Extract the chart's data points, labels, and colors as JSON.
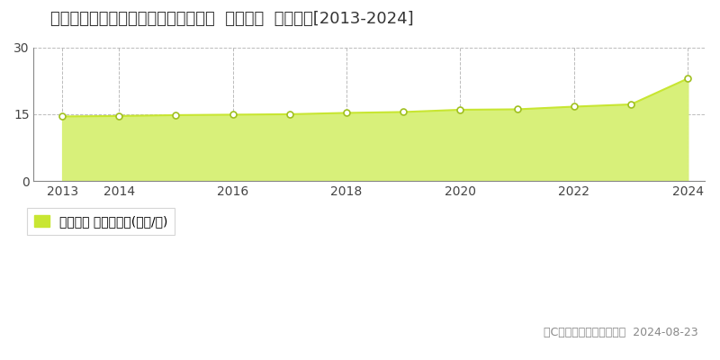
{
  "title": "宮城県名取市飯野坂６丁目３１５番外  地価公示  地価推移[2013-2024]",
  "years": [
    2013,
    2014,
    2015,
    2016,
    2017,
    2018,
    2019,
    2020,
    2021,
    2022,
    2023,
    2024
  ],
  "values": [
    14.5,
    14.6,
    14.8,
    14.9,
    15.0,
    15.3,
    15.5,
    16.0,
    16.1,
    16.7,
    17.2,
    23.0
  ],
  "line_color": "#c8e632",
  "fill_color": "#d8f07a",
  "marker_color": "#ffffff",
  "marker_edge_color": "#a0c020",
  "grid_color": "#aaaaaa",
  "background_color": "#ffffff",
  "ylim": [
    0,
    30
  ],
  "yticks": [
    0,
    15,
    30
  ],
  "xticks": [
    2013,
    2014,
    2016,
    2018,
    2020,
    2022,
    2024
  ],
  "legend_label": "地価公示 平均坪単価(万円/坪)",
  "legend_color": "#c8e632",
  "copyright_text": "（C）土地価格ドットコム  2024-08-23",
  "title_fontsize": 13,
  "axis_fontsize": 10,
  "legend_fontsize": 10,
  "copyright_fontsize": 9
}
